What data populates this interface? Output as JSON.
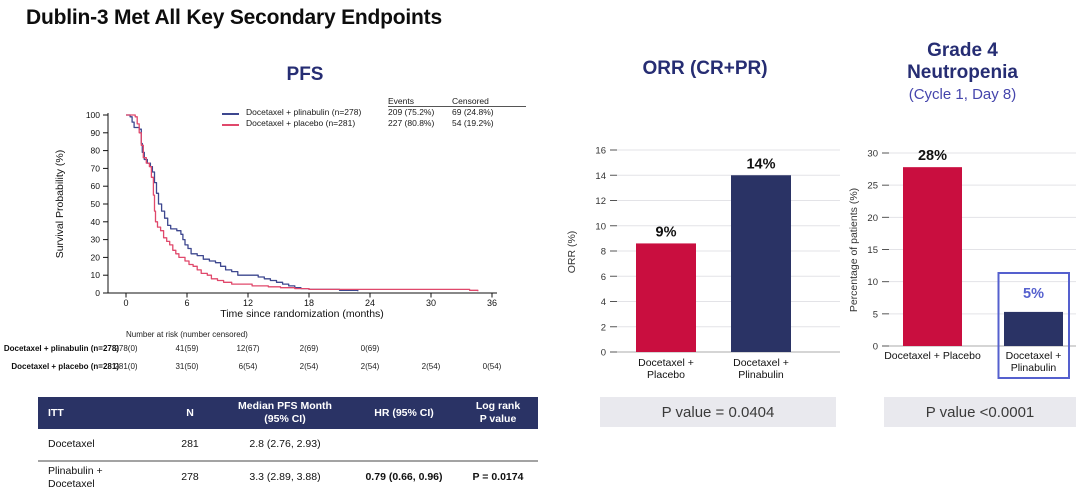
{
  "page_title": "Dublin-3 Met All Key Secondary Endpoints",
  "colors": {
    "navy_bar": "#2A3365",
    "crimson_bar": "#C90E3F",
    "km_blue": "#3D478F",
    "km_red": "#E0486B",
    "title_navy": "#262D73",
    "highlight_purple": "#5560CE",
    "subtitle_indigo": "#4545AC",
    "gridline": "#E3E3E7",
    "pvalue_box_bg": "#E9E9EE"
  },
  "chart_data": [
    {
      "type": "line",
      "variant": "kaplan-meier-step",
      "title": "PFS",
      "xlabel": "Time since randomization (months)",
      "ylabel": "Survival Probability (%)",
      "xlim": [
        0,
        36
      ],
      "ylim": [
        0,
        100
      ],
      "xticks": [
        0,
        6,
        12,
        18,
        24,
        30,
        36
      ],
      "yticks": [
        0,
        10,
        20,
        30,
        40,
        50,
        60,
        70,
        80,
        90,
        100
      ],
      "grid": false,
      "legend_position": "top-right",
      "legend_columns": [
        "Events",
        "Censored"
      ],
      "series": [
        {
          "name": "Docetaxel + plinabulin (n=278)",
          "color": "#3D478F",
          "events": "209 (75.2%)",
          "censored": "69 (24.8%)",
          "points": [
            [
              0,
              100
            ],
            [
              0.4,
              99
            ],
            [
              0.6,
              96
            ],
            [
              0.8,
              93
            ],
            [
              1.3,
              92
            ],
            [
              1.5,
              84
            ],
            [
              1.6,
              79
            ],
            [
              1.8,
              75
            ],
            [
              2.1,
              73
            ],
            [
              2.4,
              71
            ],
            [
              2.6,
              68
            ],
            [
              2.8,
              62
            ],
            [
              3.0,
              56
            ],
            [
              3.2,
              50
            ],
            [
              3.5,
              46
            ],
            [
              3.8,
              42
            ],
            [
              4.1,
              38
            ],
            [
              4.4,
              36
            ],
            [
              5.0,
              35
            ],
            [
              5.4,
              33
            ],
            [
              5.6,
              30
            ],
            [
              5.8,
              27
            ],
            [
              6.1,
              25
            ],
            [
              6.4,
              22
            ],
            [
              7.0,
              21
            ],
            [
              7.6,
              19
            ],
            [
              8.2,
              18
            ],
            [
              8.8,
              17
            ],
            [
              9.3,
              15
            ],
            [
              9.8,
              13
            ],
            [
              10.4,
              12
            ],
            [
              11.0,
              10
            ],
            [
              12.2,
              10
            ],
            [
              13.0,
              9
            ],
            [
              13.6,
              8
            ],
            [
              14.2,
              7
            ],
            [
              14.8,
              6
            ],
            [
              15.4,
              5
            ],
            [
              16.0,
              4
            ],
            [
              16.6,
              3
            ],
            [
              17.2,
              2.5
            ],
            [
              18.0,
              2
            ],
            [
              20.0,
              2
            ],
            [
              21.0,
              1.5
            ],
            [
              22.8,
              1
            ]
          ]
        },
        {
          "name": "Docetaxel + placebo (n=281)",
          "color": "#E0486B",
          "events": "227 (80.8%)",
          "censored": "54 (19.2%)",
          "points": [
            [
              0,
              100
            ],
            [
              0.9,
              99
            ],
            [
              1.1,
              95
            ],
            [
              1.3,
              90
            ],
            [
              1.5,
              83
            ],
            [
              1.7,
              76
            ],
            [
              2.0,
              73
            ],
            [
              2.3,
              71
            ],
            [
              2.5,
              65
            ],
            [
              2.7,
              55
            ],
            [
              2.8,
              46
            ],
            [
              2.9,
              40
            ],
            [
              3.1,
              37
            ],
            [
              3.4,
              35
            ],
            [
              3.7,
              31
            ],
            [
              4.0,
              29
            ],
            [
              4.3,
              27
            ],
            [
              4.6,
              24
            ],
            [
              4.9,
              22
            ],
            [
              5.2,
              20
            ],
            [
              5.8,
              18
            ],
            [
              6.2,
              16
            ],
            [
              6.6,
              15
            ],
            [
              7.0,
              13
            ],
            [
              7.4,
              11
            ],
            [
              8.0,
              10
            ],
            [
              8.4,
              8
            ],
            [
              9.0,
              7
            ],
            [
              9.6,
              6
            ],
            [
              10.4,
              5
            ],
            [
              11.8,
              5
            ],
            [
              12.4,
              4
            ],
            [
              14.0,
              3.5
            ],
            [
              15.2,
              3
            ],
            [
              16.6,
              2.5
            ],
            [
              18.0,
              2
            ],
            [
              24.0,
              2
            ],
            [
              30.0,
              2
            ],
            [
              33.2,
              2
            ],
            [
              33.8,
              1.5
            ],
            [
              34.6,
              1
            ]
          ]
        }
      ],
      "at_risk": {
        "header": "Number at risk (number censored)",
        "rows": [
          {
            "label": "Docetaxel + plinabulin (n=278)",
            "values": [
              "278(0)",
              "41(59)",
              "12(67)",
              "2(69)",
              "0(69)"
            ]
          },
          {
            "label": "Docetaxel + placebo (n=281)",
            "values": [
              "281(0)",
              "31(50)",
              "6(54)",
              "2(54)",
              "2(54)",
              "2(54)",
              "0(54)"
            ]
          }
        ]
      },
      "summary_table": {
        "headers": [
          "ITT",
          "N",
          "Median PFS Month\n(95% CI)",
          "HR (95% CI)",
          "Log rank\nP value"
        ],
        "rows": [
          [
            "Docetaxel",
            "281",
            "2.8 (2.76, 2.93)",
            "",
            ""
          ],
          [
            "Plinabulin +\nDocetaxel",
            "278",
            "3.3 (2.89, 3.88)",
            "0.79 (0.66, 0.96)",
            "P = 0.0174"
          ]
        ]
      }
    },
    {
      "type": "bar",
      "title": "ORR (CR+PR)",
      "xlabel": "",
      "ylabel": "ORR (%)",
      "ylim": [
        0,
        16
      ],
      "yticks": [
        0,
        2,
        4,
        6,
        8,
        10,
        12,
        14,
        16
      ],
      "grid": true,
      "categories": [
        "Docetaxel +\nPlacebo",
        "Docetaxel +\nPlinabulin"
      ],
      "values": [
        8.6,
        14
      ],
      "bar_labels": [
        "9%",
        "14%"
      ],
      "bar_colors": [
        "#C90E3F",
        "#2A3365"
      ],
      "bar_label_colors": [
        "#111111",
        "#111111"
      ],
      "p_value": "P value = 0.0404"
    },
    {
      "type": "bar",
      "title": "Grade 4\nNeutropenia",
      "subtitle": "(Cycle 1, Day 8)",
      "xlabel": "",
      "ylabel": "Percentage of patients (%)",
      "ylim": [
        0,
        30
      ],
      "yticks": [
        0,
        5,
        10,
        15,
        20,
        25,
        30
      ],
      "grid": true,
      "categories": [
        "Docetaxel + Placebo",
        "Docetaxel +\nPlinabulin"
      ],
      "values": [
        27.8,
        5.3
      ],
      "bar_labels": [
        "28%",
        "5%"
      ],
      "bar_colors": [
        "#C90E3F",
        "#2A3365"
      ],
      "bar_label_colors": [
        "#111111",
        "#5560CE"
      ],
      "highlight_index": 1,
      "highlight_color": "#5560CE",
      "p_value": "P value <0.0001"
    }
  ]
}
